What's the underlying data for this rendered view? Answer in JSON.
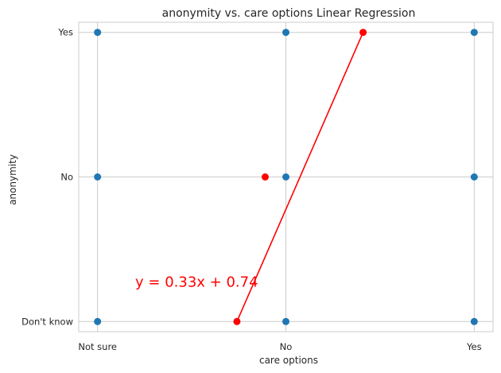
{
  "chart_data": {
    "type": "scatter",
    "title": "anonymity vs. care options Linear Regression",
    "xlabel": "care options",
    "ylabel": "anonymity",
    "x_categories": [
      "Not sure",
      "No",
      "Yes"
    ],
    "y_categories": [
      "Don't know",
      "No",
      "Yes"
    ],
    "xlim": [
      -0.1,
      2.1
    ],
    "ylim": [
      -0.07,
      2.07
    ],
    "grid": true,
    "series": [
      {
        "color": "#1f77b4",
        "points": [
          {
            "x": 0,
            "y": 0
          },
          {
            "x": 0,
            "y": 1
          },
          {
            "x": 0,
            "y": 2
          },
          {
            "x": 1,
            "y": 0
          },
          {
            "x": 1,
            "y": 1
          },
          {
            "x": 1,
            "y": 2
          },
          {
            "x": 2,
            "y": 0
          },
          {
            "x": 2,
            "y": 1
          },
          {
            "x": 2,
            "y": 2
          }
        ]
      },
      {
        "color": "#ff0000",
        "points": [
          {
            "x": 0.74,
            "y": 0
          },
          {
            "x": 0.89,
            "y": 1
          },
          {
            "x": 1.41,
            "y": 2
          }
        ]
      }
    ],
    "regression_line": {
      "color": "#ff0000",
      "from": {
        "x": 0.74,
        "y": 0
      },
      "to": {
        "x": 1.41,
        "y": 2
      }
    },
    "annotation": {
      "text": "y = 0.33x + 0.74",
      "x": 0.2,
      "y": 0.24
    }
  }
}
